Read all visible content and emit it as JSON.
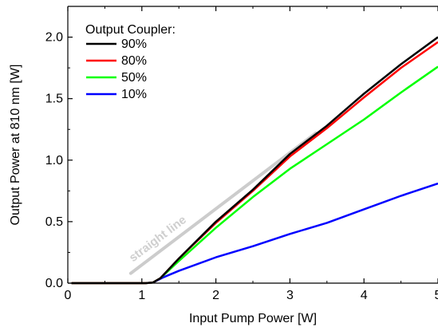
{
  "chart_data": {
    "type": "line",
    "xlabel": "Input Pump Power [W]",
    "ylabel": "Output Power at 810 nm [W]",
    "xlim": [
      0,
      5
    ],
    "ylim": [
      0,
      2.25
    ],
    "x_ticks": [
      "0",
      "1",
      "2",
      "3",
      "4",
      "5"
    ],
    "y_ticks": [
      "0.0",
      "0.5",
      "1.0",
      "1.5",
      "2.0"
    ],
    "grid": false,
    "legend": {
      "title": "Output Coupler:",
      "placement": "top-left"
    },
    "series": [
      {
        "name": "90%",
        "color": "#000000",
        "points": [
          [
            0.05,
            0
          ],
          [
            1.05,
            0
          ],
          [
            1.15,
            0.005
          ],
          [
            1.25,
            0.04
          ],
          [
            1.5,
            0.2
          ],
          [
            2.0,
            0.5
          ],
          [
            2.5,
            0.76
          ],
          [
            3.0,
            1.05
          ],
          [
            3.5,
            1.28
          ],
          [
            4.0,
            1.54
          ],
          [
            4.5,
            1.78
          ],
          [
            5.0,
            2.0
          ]
        ]
      },
      {
        "name": "80%",
        "color": "#ff0000",
        "points": [
          [
            0.05,
            0
          ],
          [
            1.05,
            0
          ],
          [
            1.15,
            0.005
          ],
          [
            1.25,
            0.04
          ],
          [
            1.5,
            0.2
          ],
          [
            2.0,
            0.49
          ],
          [
            2.5,
            0.75
          ],
          [
            3.0,
            1.03
          ],
          [
            3.5,
            1.26
          ],
          [
            4.0,
            1.51
          ],
          [
            4.5,
            1.75
          ],
          [
            5.0,
            1.96
          ]
        ]
      },
      {
        "name": "50%",
        "color": "#00ff00",
        "points": [
          [
            0.05,
            0
          ],
          [
            1.05,
            0
          ],
          [
            1.15,
            0.005
          ],
          [
            1.25,
            0.04
          ],
          [
            1.5,
            0.18
          ],
          [
            2.0,
            0.45
          ],
          [
            2.5,
            0.7
          ],
          [
            3.0,
            0.93
          ],
          [
            3.5,
            1.13
          ],
          [
            4.0,
            1.33
          ],
          [
            4.5,
            1.55
          ],
          [
            5.0,
            1.76
          ]
        ]
      },
      {
        "name": "10%",
        "color": "#0000ff",
        "points": [
          [
            0.05,
            0
          ],
          [
            1.05,
            0
          ],
          [
            1.15,
            0.005
          ],
          [
            1.3,
            0.05
          ],
          [
            1.5,
            0.1
          ],
          [
            2.0,
            0.21
          ],
          [
            2.5,
            0.3
          ],
          [
            3.0,
            0.4
          ],
          [
            3.5,
            0.49
          ],
          [
            4.0,
            0.6
          ],
          [
            4.5,
            0.71
          ],
          [
            5.0,
            0.81
          ]
        ]
      }
    ],
    "annotation_line": {
      "label": "straight line",
      "color": "#cccccc",
      "points": [
        [
          0.85,
          0.08
        ],
        [
          3.35,
          1.22
        ]
      ]
    }
  }
}
